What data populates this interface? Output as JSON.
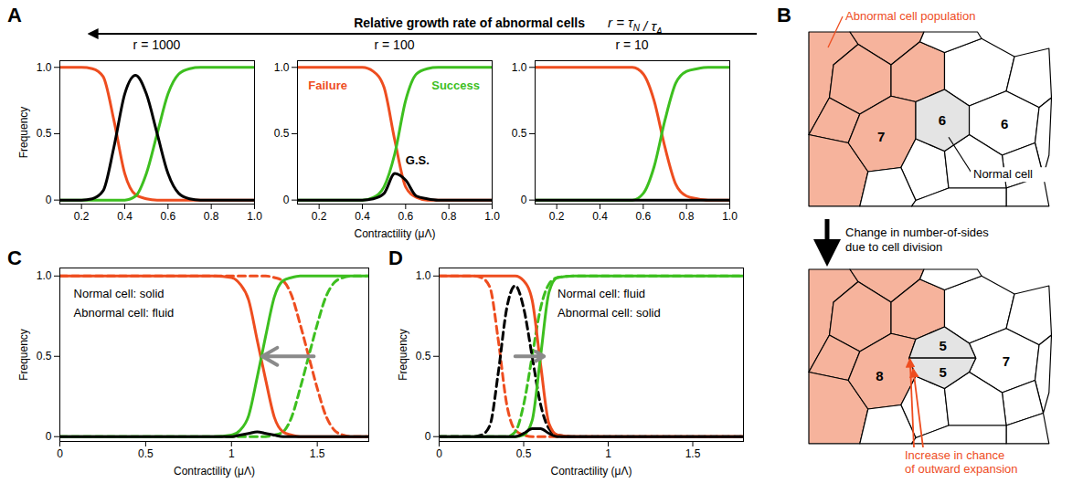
{
  "chart_data": [
    {
      "type": "line",
      "title": "r = 1000",
      "ylabel": "Frequency",
      "x": [
        0.1,
        0.15,
        0.2,
        0.25,
        0.3,
        0.35,
        0.4,
        0.45,
        0.5,
        0.55,
        0.6,
        0.65,
        0.7,
        0.75,
        0.8,
        0.85,
        0.9,
        0.95,
        1.0
      ],
      "xlim": [
        0.1,
        1.0
      ],
      "xticks": [
        0.2,
        0.4,
        0.6,
        0.8,
        {
          "value": 1,
          "label": "1.0"
        }
      ],
      "ylim": [
        -0.03,
        1.05
      ],
      "yticks": [
        0,
        0.5,
        {
          "value": 1,
          "label": "1.0"
        }
      ],
      "series": [
        {
          "name": "Failure",
          "color": "#ee4d1f",
          "values": [
            1,
            1,
            1,
            0.99,
            0.93,
            0.6,
            0.2,
            0.04,
            0.01,
            0,
            0,
            0,
            0,
            0,
            0,
            0,
            0,
            0,
            0
          ]
        },
        {
          "name": "Success",
          "color": "#3dbf1f",
          "values": [
            0,
            0,
            0,
            0,
            0,
            0,
            0,
            0.03,
            0.2,
            0.5,
            0.8,
            0.95,
            0.99,
            1,
            1,
            1,
            1,
            1,
            1
          ]
        },
        {
          "name": "G.S.",
          "color": "#000000",
          "values": [
            0,
            0,
            0,
            0.01,
            0.07,
            0.4,
            0.8,
            0.94,
            0.8,
            0.5,
            0.2,
            0.05,
            0.01,
            0,
            0,
            0,
            0,
            0,
            0
          ]
        }
      ]
    },
    {
      "type": "line",
      "title": "r = 100",
      "xlabel": "Contractility (μΛ)",
      "x": [
        0.1,
        0.15,
        0.2,
        0.25,
        0.3,
        0.35,
        0.4,
        0.45,
        0.5,
        0.55,
        0.6,
        0.65,
        0.7,
        0.75,
        0.8,
        0.85,
        0.9,
        0.95,
        1.0
      ],
      "xlim": [
        0.1,
        1.0
      ],
      "xticks": [
        0.2,
        0.4,
        0.6,
        0.8,
        {
          "value": 1,
          "label": "1.0"
        }
      ],
      "ylim": [
        -0.03,
        1.05
      ],
      "yticks": [
        0,
        0.5,
        {
          "value": 1,
          "label": "1.0"
        }
      ],
      "series": [
        {
          "name": "Failure",
          "color": "#ee4d1f",
          "values": [
            1,
            1,
            1,
            1,
            1,
            1,
            1,
            0.97,
            0.85,
            0.45,
            0.1,
            0.02,
            0,
            0,
            0,
            0,
            0,
            0,
            0
          ]
        },
        {
          "name": "Success",
          "color": "#3dbf1f",
          "values": [
            0,
            0,
            0,
            0,
            0,
            0,
            0,
            0.02,
            0.1,
            0.35,
            0.75,
            0.95,
            0.99,
            1,
            1,
            1,
            1,
            1,
            1
          ]
        },
        {
          "name": "G.S.",
          "color": "#000000",
          "values": [
            0,
            0,
            0,
            0,
            0,
            0,
            0,
            0.01,
            0.05,
            0.2,
            0.15,
            0.03,
            0.01,
            0,
            0,
            0,
            0,
            0,
            0
          ]
        }
      ],
      "annotations": [
        {
          "text": "Failure",
          "x": 0.15,
          "y": 0.86,
          "color": "#ee4d1f"
        },
        {
          "text": "Success",
          "x": 0.72,
          "y": 0.86,
          "color": "#3dbf1f"
        },
        {
          "text": "G.S.",
          "x": 0.6,
          "y": 0.3,
          "color": "#000000"
        }
      ]
    },
    {
      "type": "line",
      "title": "r = 10",
      "x": [
        0.1,
        0.15,
        0.2,
        0.25,
        0.3,
        0.35,
        0.4,
        0.45,
        0.5,
        0.55,
        0.6,
        0.65,
        0.7,
        0.75,
        0.8,
        0.85,
        0.9,
        0.95,
        1.0
      ],
      "xlim": [
        0.1,
        1.0
      ],
      "xticks": [
        0.2,
        0.4,
        0.6,
        0.8,
        {
          "value": 1,
          "label": "1.0"
        }
      ],
      "ylim": [
        -0.03,
        1.05
      ],
      "yticks": [
        0,
        0.5,
        {
          "value": 1,
          "label": "1.0"
        }
      ],
      "series": [
        {
          "name": "Failure",
          "color": "#ee4d1f",
          "values": [
            1,
            1,
            1,
            1,
            1,
            1,
            1,
            1,
            1,
            1,
            0.95,
            0.75,
            0.4,
            0.12,
            0.03,
            0.01,
            0,
            0,
            0
          ]
        },
        {
          "name": "Success",
          "color": "#3dbf1f",
          "values": [
            0,
            0,
            0,
            0,
            0,
            0,
            0,
            0,
            0,
            0,
            0.05,
            0.25,
            0.6,
            0.88,
            0.97,
            0.99,
            1,
            1,
            1
          ]
        },
        {
          "name": "G.S.",
          "color": "#000000",
          "values": [
            0,
            0,
            0,
            0,
            0,
            0,
            0,
            0,
            0,
            0,
            0,
            0,
            0,
            0,
            0,
            0,
            0,
            0,
            0
          ]
        }
      ]
    },
    {
      "type": "line",
      "xlabel": "Contractility (μΛ)",
      "ylabel": "Frequency",
      "x": [
        0,
        0.2,
        0.4,
        0.6,
        0.8,
        0.9,
        1.0,
        1.05,
        1.1,
        1.15,
        1.2,
        1.25,
        1.3,
        1.35,
        1.4,
        1.45,
        1.5,
        1.55,
        1.6,
        1.65,
        1.7,
        1.8
      ],
      "xlim": [
        0,
        1.8
      ],
      "xticks": [
        0,
        0.5,
        1,
        1.5
      ],
      "ylim": [
        -0.03,
        1.05
      ],
      "yticks": [
        0,
        0.5,
        {
          "value": 1,
          "label": "1.0"
        }
      ],
      "series": [
        {
          "name": "Failure",
          "color": "#ee4d1f",
          "line_style": "dashed",
          "values": [
            1,
            1,
            1,
            1,
            1,
            1,
            1,
            1,
            1,
            1,
            1,
            0.99,
            0.97,
            0.88,
            0.7,
            0.5,
            0.3,
            0.13,
            0.04,
            0.01,
            0,
            0
          ]
        },
        {
          "name": "Success",
          "color": "#3dbf1f",
          "line_style": "dashed",
          "values": [
            0,
            0,
            0,
            0,
            0,
            0,
            0,
            0,
            0,
            0,
            0,
            0.01,
            0.03,
            0.12,
            0.3,
            0.5,
            0.7,
            0.87,
            0.96,
            0.99,
            1,
            1
          ]
        },
        {
          "name": "Failure",
          "color": "#ee4d1f",
          "line_style": "solid",
          "values": [
            1,
            1,
            1,
            1,
            1,
            1,
            0.99,
            0.95,
            0.85,
            0.6,
            0.35,
            0.12,
            0.03,
            0.01,
            0,
            0,
            0,
            0,
            0,
            0,
            0,
            0
          ]
        },
        {
          "name": "Success",
          "color": "#3dbf1f",
          "line_style": "solid",
          "values": [
            0,
            0,
            0,
            0,
            0,
            0,
            0.01,
            0.04,
            0.13,
            0.37,
            0.63,
            0.87,
            0.97,
            0.99,
            1,
            1,
            1,
            1,
            1,
            1,
            1,
            1
          ]
        },
        {
          "name": "G.S.",
          "color": "#000000",
          "line_style": "solid",
          "values": [
            0,
            0,
            0,
            0,
            0,
            0,
            0,
            0.01,
            0.02,
            0.03,
            0.02,
            0.01,
            0,
            0,
            0,
            0,
            0,
            0,
            0,
            0,
            0,
            0
          ]
        }
      ],
      "annotations": [
        {
          "text": "Normal cell: solid",
          "x": 0.08,
          "y": 0.89,
          "color": "#000000"
        },
        {
          "text": "Abnormal cell: fluid",
          "x": 0.08,
          "y": 0.77,
          "color": "#000000"
        }
      ],
      "arrows": [
        {
          "x1": 1.48,
          "y1": 0.5,
          "x2": 1.18,
          "y2": 0.5
        }
      ]
    },
    {
      "type": "line",
      "xlabel": "Contractility (μΛ)",
      "ylabel": "Frequency",
      "x": [
        0,
        0.1,
        0.2,
        0.25,
        0.3,
        0.35,
        0.4,
        0.45,
        0.5,
        0.55,
        0.6,
        0.65,
        0.7,
        0.8,
        1.0,
        1.2,
        1.4,
        1.6,
        1.8
      ],
      "xlim": [
        0,
        1.8
      ],
      "xticks": [
        0,
        0.5,
        1,
        1.5
      ],
      "ylim": [
        -0.03,
        1.05
      ],
      "yticks": [
        0,
        0.5,
        {
          "value": 1,
          "label": "1.0"
        }
      ],
      "series": [
        {
          "name": "Failure",
          "color": "#ee4d1f",
          "line_style": "dashed",
          "values": [
            1,
            1,
            1,
            0.99,
            0.93,
            0.6,
            0.2,
            0.04,
            0.01,
            0,
            0,
            0,
            0,
            0,
            0,
            0,
            0,
            0,
            0
          ]
        },
        {
          "name": "Success",
          "color": "#3dbf1f",
          "line_style": "dashed",
          "values": [
            0,
            0,
            0,
            0,
            0,
            0,
            0,
            0.03,
            0.2,
            0.5,
            0.8,
            0.95,
            0.99,
            1,
            1,
            1,
            1,
            1,
            1
          ]
        },
        {
          "name": "G.S.",
          "color": "#000000",
          "line_style": "dashed",
          "values": [
            0,
            0,
            0,
            0.01,
            0.07,
            0.4,
            0.8,
            0.94,
            0.8,
            0.5,
            0.2,
            0.05,
            0.01,
            0,
            0,
            0,
            0,
            0,
            0
          ]
        },
        {
          "name": "Failure",
          "color": "#ee4d1f",
          "line_style": "solid",
          "values": [
            1,
            1,
            1,
            1,
            1,
            1,
            1,
            1,
            0.97,
            0.85,
            0.45,
            0.08,
            0.01,
            0,
            0,
            0,
            0,
            0,
            0
          ]
        },
        {
          "name": "Success",
          "color": "#3dbf1f",
          "line_style": "solid",
          "values": [
            0,
            0,
            0,
            0,
            0,
            0,
            0,
            0,
            0.01,
            0.1,
            0.5,
            0.9,
            0.99,
            1,
            1,
            1,
            1,
            1,
            1
          ]
        },
        {
          "name": "G.S.",
          "color": "#000000",
          "line_style": "solid",
          "values": [
            0,
            0,
            0,
            0,
            0,
            0,
            0,
            0,
            0.02,
            0.05,
            0.05,
            0.02,
            0,
            0,
            0,
            0,
            0,
            0,
            0
          ]
        }
      ],
      "annotations": [
        {
          "text": "Normal cell: fluid",
          "x": 0.7,
          "y": 0.89,
          "color": "#000000"
        },
        {
          "text": "Abnormal cell: solid",
          "x": 0.7,
          "y": 0.77,
          "color": "#000000"
        }
      ],
      "arrows": [
        {
          "x1": 0.45,
          "y1": 0.5,
          "x2": 0.62,
          "y2": 0.5
        }
      ]
    }
  ],
  "panel_A": {
    "label": "A",
    "header": "Relative growth rate of abnormal cells",
    "formula": "r = τN / τA"
  },
  "panel_B": {
    "label": "B",
    "population_label": "Abnormal cell population",
    "normal_label": "Normal cell",
    "before": {
      "normal_sides": 6,
      "abnormal_sides": 7,
      "neighbor_sides": 6
    },
    "transition": "Change in number-of-sides due to cell division",
    "after": {
      "daughter_sides": [
        5,
        5
      ],
      "abnormal_sides": 8,
      "neighbor_sides": 7
    },
    "effect": "Increase in chance of outward expansion"
  },
  "panel_C": {
    "label": "C"
  },
  "panel_D": {
    "label": "D"
  }
}
